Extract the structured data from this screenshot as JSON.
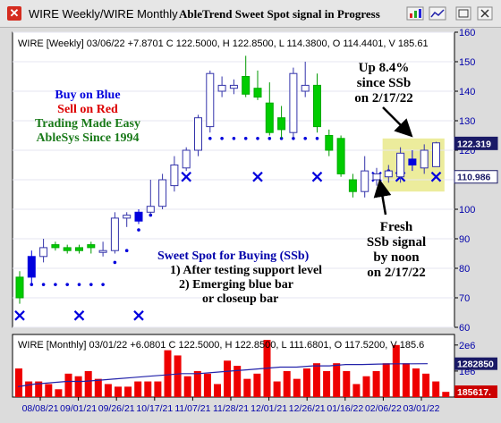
{
  "window": {
    "title": "WIRE Weekly/WIRE Monthly",
    "signal_title": "AbleTrend Sweet Spot signal in Progress"
  },
  "toolbar_icons": [
    "chart-icon",
    "line-chart-icon",
    "maximize-icon",
    "close-window-icon"
  ],
  "colors": {
    "up": "#00cc00",
    "down": "#dd0000",
    "blue": "#0000dd",
    "highlight": "#ecec9c",
    "pane_bg": "#ffffff",
    "axis": "#0000aa"
  },
  "chart_data": [
    {
      "type": "candlestick",
      "header": "WIRE [Weekly] 03/06/22 +7.8701 C 122.5000, H 122.8500, L 114.3800, O 114.4401, V 185.61",
      "ylim": [
        60,
        160
      ],
      "y_ticks": [
        60,
        70,
        80,
        90,
        100,
        110,
        120,
        130,
        140,
        150,
        160
      ],
      "x_labels": [
        "08/08/21",
        "09/01/21",
        "09/26/21",
        "10/17/21",
        "11/07/21",
        "11/28/21",
        "12/01/21",
        "12/26/21",
        "01/16/22",
        "02/06/22",
        "03/01/22"
      ],
      "price_labels": [
        {
          "value": 122.319,
          "text": "122.319",
          "style": "dark"
        },
        {
          "value": 110.986,
          "text": "110.986",
          "style": "light"
        }
      ],
      "bars": [
        {
          "o": 70,
          "h": 79,
          "l": 68,
          "c": 77,
          "color": "green"
        },
        {
          "o": 77,
          "h": 86,
          "l": 75,
          "c": 84,
          "color": "blue"
        },
        {
          "o": 84,
          "h": 90,
          "l": 82,
          "c": 87,
          "color": "hollow"
        },
        {
          "o": 87,
          "h": 89,
          "l": 86,
          "c": 88,
          "color": "green"
        },
        {
          "o": 87,
          "h": 88,
          "l": 85,
          "c": 86,
          "color": "green"
        },
        {
          "o": 86,
          "h": 88,
          "l": 85,
          "c": 87,
          "color": "green"
        },
        {
          "o": 87,
          "h": 89,
          "l": 85,
          "c": 88,
          "color": "green"
        },
        {
          "o": 86,
          "h": 89,
          "l": 84,
          "c": 86,
          "color": "hollow"
        },
        {
          "o": 86,
          "h": 99,
          "l": 85,
          "c": 97,
          "color": "hollow"
        },
        {
          "o": 97,
          "h": 99,
          "l": 94,
          "c": 98,
          "color": "hollow"
        },
        {
          "o": 96,
          "h": 100,
          "l": 95,
          "c": 99,
          "color": "blue"
        },
        {
          "o": 99,
          "h": 110,
          "l": 98,
          "c": 101,
          "color": "hollow"
        },
        {
          "o": 101,
          "h": 112,
          "l": 100,
          "c": 110,
          "color": "hollow"
        },
        {
          "o": 108,
          "h": 118,
          "l": 106,
          "c": 115,
          "color": "hollow"
        },
        {
          "o": 114,
          "h": 121,
          "l": 113,
          "c": 120,
          "color": "hollow"
        },
        {
          "o": 120,
          "h": 132,
          "l": 118,
          "c": 131,
          "color": "hollow"
        },
        {
          "o": 128,
          "h": 147,
          "l": 126,
          "c": 146,
          "color": "hollow"
        },
        {
          "o": 140,
          "h": 145,
          "l": 138,
          "c": 142,
          "color": "hollow"
        },
        {
          "o": 142,
          "h": 144,
          "l": 139,
          "c": 141,
          "color": "hollow"
        },
        {
          "o": 145,
          "h": 152,
          "l": 138,
          "c": 139,
          "color": "green"
        },
        {
          "o": 141,
          "h": 147,
          "l": 137,
          "c": 138,
          "color": "green"
        },
        {
          "o": 136,
          "h": 143,
          "l": 125,
          "c": 126,
          "color": "green"
        },
        {
          "o": 127,
          "h": 135,
          "l": 124,
          "c": 131,
          "color": "green"
        },
        {
          "o": 126,
          "h": 148,
          "l": 124,
          "c": 146,
          "color": "hollow"
        },
        {
          "o": 140,
          "h": 150,
          "l": 138,
          "c": 142,
          "color": "hollow"
        },
        {
          "o": 142,
          "h": 146,
          "l": 126,
          "c": 128,
          "color": "green"
        },
        {
          "o": 125,
          "h": 127,
          "l": 118,
          "c": 120,
          "color": "green"
        },
        {
          "o": 124,
          "h": 125,
          "l": 111,
          "c": 112,
          "color": "green"
        },
        {
          "o": 110,
          "h": 112,
          "l": 104,
          "c": 106,
          "color": "green"
        },
        {
          "o": 106,
          "h": 118,
          "l": 104,
          "c": 113,
          "color": "hollow"
        },
        {
          "o": 112,
          "h": 114,
          "l": 108,
          "c": 110,
          "color": "hollow"
        },
        {
          "o": 111,
          "h": 115,
          "l": 109,
          "c": 113,
          "color": "hollow"
        },
        {
          "o": 111,
          "h": 121,
          "l": 109,
          "c": 119,
          "color": "hollow"
        },
        {
          "o": 117,
          "h": 120,
          "l": 113,
          "c": 115,
          "color": "blue"
        },
        {
          "o": 114,
          "h": 122,
          "l": 112,
          "c": 120,
          "color": "hollow"
        },
        {
          "o": 114.44,
          "h": 122.85,
          "l": 114.38,
          "c": 122.5,
          "color": "hollow"
        }
      ],
      "support_dots": [
        {
          "x": 1,
          "y": 74.5
        },
        {
          "x": 2,
          "y": 74.5
        },
        {
          "x": 3,
          "y": 74.5
        },
        {
          "x": 4,
          "y": 74.5
        },
        {
          "x": 5,
          "y": 74.5
        },
        {
          "x": 6,
          "y": 74.5
        },
        {
          "x": 7,
          "y": 74.5
        },
        {
          "x": 8,
          "y": 74.5
        },
        {
          "x": 9,
          "y": 82
        },
        {
          "x": 10,
          "y": 86
        },
        {
          "x": 11,
          "y": 93
        },
        {
          "x": 12,
          "y": 98
        },
        {
          "x": 13,
          "y": 108
        },
        {
          "x": 14,
          "y": 114
        },
        {
          "x": 15,
          "y": 118
        },
        {
          "x": 16,
          "y": 124
        },
        {
          "x": 17,
          "y": 124
        },
        {
          "x": 18,
          "y": 124
        },
        {
          "x": 19,
          "y": 124
        },
        {
          "x": 20,
          "y": 124
        },
        {
          "x": 21,
          "y": 124
        },
        {
          "x": 22,
          "y": 124
        },
        {
          "x": 23,
          "y": 124
        },
        {
          "x": 24,
          "y": 124
        },
        {
          "x": 25,
          "y": 124
        },
        {
          "x": 26,
          "y": 124
        },
        {
          "x": 27,
          "y": 124
        },
        {
          "x": 32,
          "y": 113
        },
        {
          "x": 33,
          "y": 113
        }
      ],
      "x_marks": [
        {
          "x": 1,
          "y": 64
        },
        {
          "x": 6,
          "y": 64
        },
        {
          "x": 11,
          "y": 64
        },
        {
          "x": 15,
          "y": 111
        },
        {
          "x": 21,
          "y": 111
        },
        {
          "x": 26,
          "y": 111
        },
        {
          "x": 31,
          "y": 111
        },
        {
          "x": 33,
          "y": 111
        },
        {
          "x": 36,
          "y": 111
        }
      ],
      "highlight_box": {
        "x_start": 31.5,
        "x_end": 36.7,
        "y_low": 106,
        "y_high": 124
      },
      "annotations": {
        "top_left": [
          "Buy on Blue",
          "Sell on Red",
          "Trading Made Easy",
          "AbleSys Since 1994"
        ],
        "top_right": [
          "Up 8.4%",
          "since SSb",
          "on 2/17/22"
        ],
        "bottom_right": [
          "Fresh",
          "SSb signal",
          "by noon",
          "on 2/17/22"
        ],
        "sweet_spot": [
          "Sweet Spot for Buying (SSb)",
          "1) After testing support level",
          "2) Emerging blue bar",
          "or closeup bar"
        ]
      }
    },
    {
      "type": "bar",
      "header": "WIRE [Monthly] 03/01/22 +6.0801 C 122.5000, H 122.8500, L 111.6801, O 117.5200, V 185.6",
      "y_ticks_text": [
        "2e6",
        "1e6"
      ],
      "ylim": [
        0,
        2200000
      ],
      "values": [
        1100000,
        600000,
        600000,
        500000,
        300000,
        900000,
        800000,
        1000000,
        700000,
        500000,
        400000,
        400000,
        600000,
        600000,
        600000,
        1800000,
        1600000,
        800000,
        1000000,
        900000,
        500000,
        1400000,
        1200000,
        700000,
        900000,
        2200000,
        600000,
        1000000,
        700000,
        1100000,
        1300000,
        1000000,
        1300000,
        1000000,
        500000,
        800000,
        1000000,
        1300000,
        2000000,
        1300000,
        1100000,
        900000,
        600000,
        200000
      ],
      "avg_line": [
        400000,
        500000,
        550000,
        600000,
        600000,
        650000,
        700000,
        750000,
        800000,
        850000,
        900000,
        900000,
        950000,
        1000000,
        1050000,
        1100000,
        1150000,
        1150000,
        1200000,
        1200000,
        1250000,
        1250000,
        1270000,
        1280000,
        1280000,
        1282850
      ],
      "price_labels": [
        {
          "value": 1282850,
          "text": "1282850",
          "style": "dark"
        },
        {
          "value": 185617,
          "text": "185617.",
          "style": "red"
        }
      ]
    }
  ]
}
